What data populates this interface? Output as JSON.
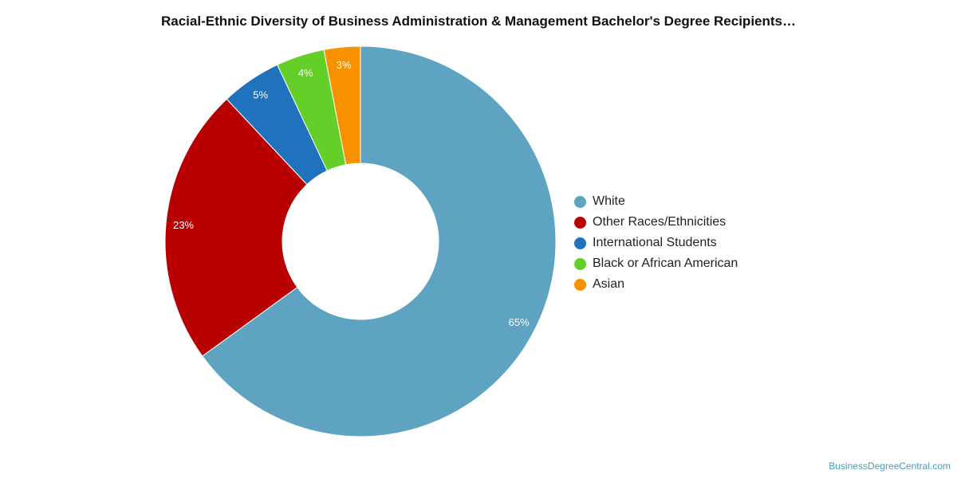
{
  "chart_data": {
    "type": "pie",
    "title": "Racial-Ethnic Diversity of Business Administration & Management Bachelor's Degree Recipients…",
    "donut": true,
    "legend_position": "right",
    "slices": [
      {
        "label": "White",
        "value": 65,
        "display": "65%",
        "color": "#5ea3c1"
      },
      {
        "label": "Other Races/Ethnicities",
        "value": 23,
        "display": "23%",
        "color": "#b80000"
      },
      {
        "label": "International Students",
        "value": 5,
        "display": "5%",
        "color": "#1f72bb"
      },
      {
        "label": "Black or African American",
        "value": 4,
        "display": "4%",
        "color": "#63cf28"
      },
      {
        "label": "Asian",
        "value": 3,
        "display": "3%",
        "color": "#f89100"
      }
    ]
  },
  "watermark": "BusinessDegreeCentral.com"
}
